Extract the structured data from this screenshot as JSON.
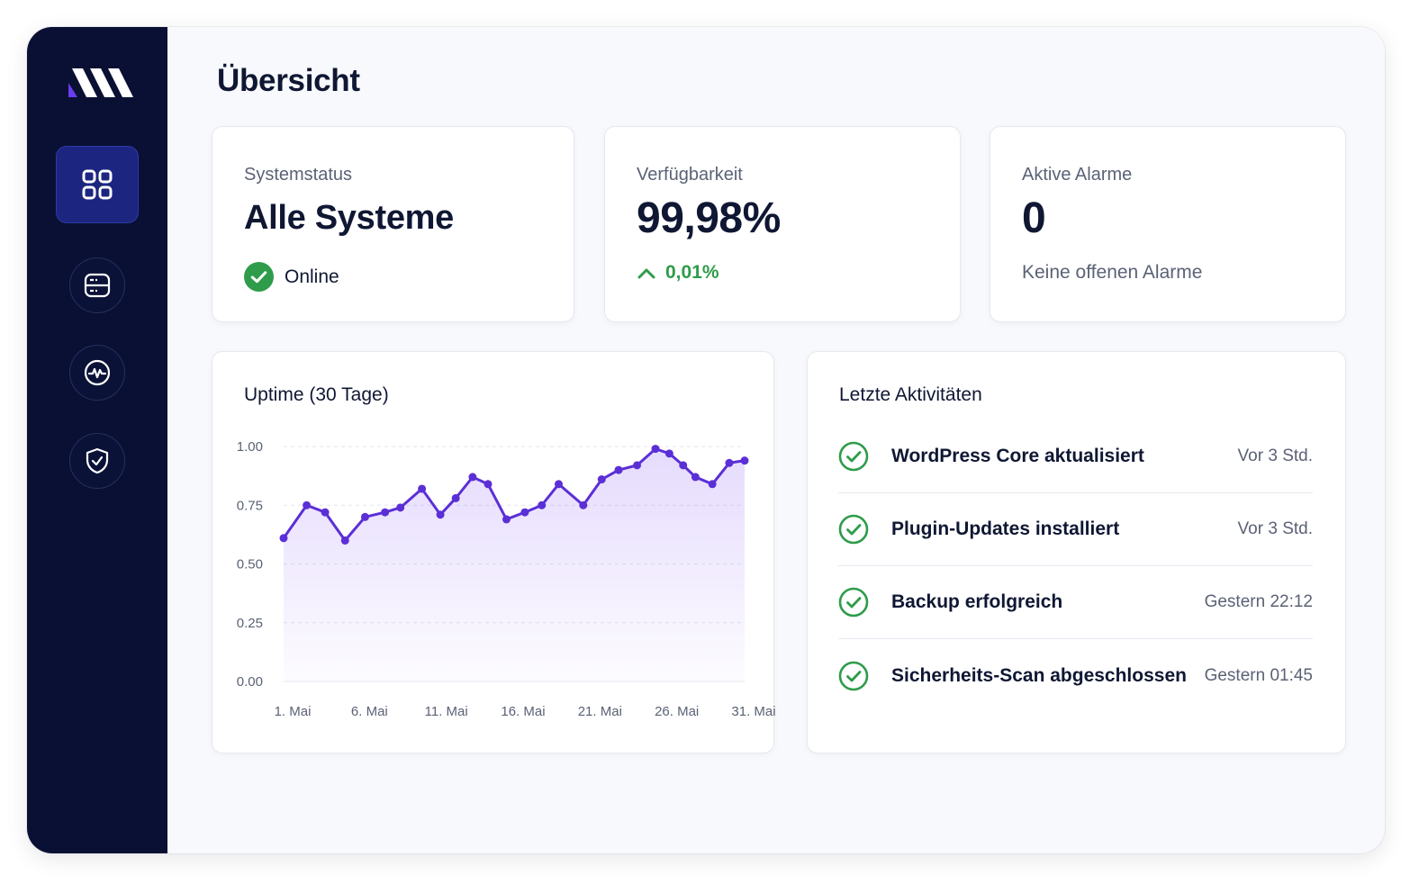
{
  "colors": {
    "sidebar": "#0a1033",
    "nav_active": "#1c2580",
    "accent": "#5b2fd6",
    "success": "#2e9c4a",
    "text": "#0f1733",
    "muted": "#5b6276"
  },
  "sidebar": {
    "logo": "brand-logo",
    "items": [
      {
        "icon": "grid-icon",
        "active": true
      },
      {
        "icon": "server-icon",
        "active": false
      },
      {
        "icon": "activity-icon",
        "active": false
      },
      {
        "icon": "shield-icon",
        "active": false
      }
    ]
  },
  "page": {
    "title": "Übersicht"
  },
  "stats": {
    "status": {
      "label": "Systemstatus",
      "value": "Alle Systeme",
      "foot": "Online",
      "icon": "check-circle-icon"
    },
    "availability": {
      "label": "Verfügbarkeit",
      "value": "99,98%",
      "foot": "0,01%",
      "icon": "arrow-up-icon"
    },
    "alarms": {
      "label": "Aktive Alarme",
      "value": "0",
      "foot": "Keine offenen Alarme"
    }
  },
  "uptime": {
    "title": "Uptime (30 Tage)"
  },
  "chart_data": {
    "type": "area",
    "title": "Uptime (30 Tage)",
    "xlabel": "",
    "ylabel": "",
    "ylim": [
      0,
      1
    ],
    "y_ticks": [
      "1.00",
      "0.75",
      "0.50",
      "0.25",
      "0.00"
    ],
    "x_ticks": [
      {
        "label": "1. Mai",
        "day": 1
      },
      {
        "label": "6. Mai",
        "day": 6
      },
      {
        "label": "11. Mai",
        "day": 11
      },
      {
        "label": "16. Mai",
        "day": 16
      },
      {
        "label": "21. Mai",
        "day": 21
      },
      {
        "label": "26. Mai",
        "day": 26
      },
      {
        "label": "31. Mai",
        "day": 31
      }
    ],
    "grid": true,
    "series": [
      {
        "x": [
          1,
          2.5,
          3.7,
          5,
          6.3,
          7.6,
          8.6,
          10,
          11.2,
          12.2,
          13.3,
          14.3,
          15.5,
          16.7,
          17.8,
          18.9,
          20.5,
          21.7,
          22.8,
          24,
          25.2,
          26.1,
          27,
          27.8,
          28.9,
          30,
          31
        ],
        "values": [
          0.61,
          0.75,
          0.72,
          0.6,
          0.7,
          0.72,
          0.74,
          0.82,
          0.71,
          0.78,
          0.87,
          0.84,
          0.69,
          0.72,
          0.75,
          0.84,
          0.75,
          0.86,
          0.9,
          0.92,
          0.99,
          0.97,
          0.92,
          0.87,
          0.84,
          0.93,
          0.94
        ]
      }
    ]
  },
  "activities": {
    "title": "Letzte Aktivitäten",
    "items": [
      {
        "label": "WordPress Core aktualisiert",
        "time": "Vor 3 Std.",
        "icon": "check-circle-icon"
      },
      {
        "label": "Plugin-Updates installiert",
        "time": "Vor 3 Std.",
        "icon": "check-circle-icon"
      },
      {
        "label": "Backup erfolgreich",
        "time": "Gestern 22:12",
        "icon": "check-circle-icon"
      },
      {
        "label": "Sicherheits-Scan abgeschlossen",
        "time": "Gestern 01:45",
        "icon": "check-circle-icon"
      }
    ]
  }
}
